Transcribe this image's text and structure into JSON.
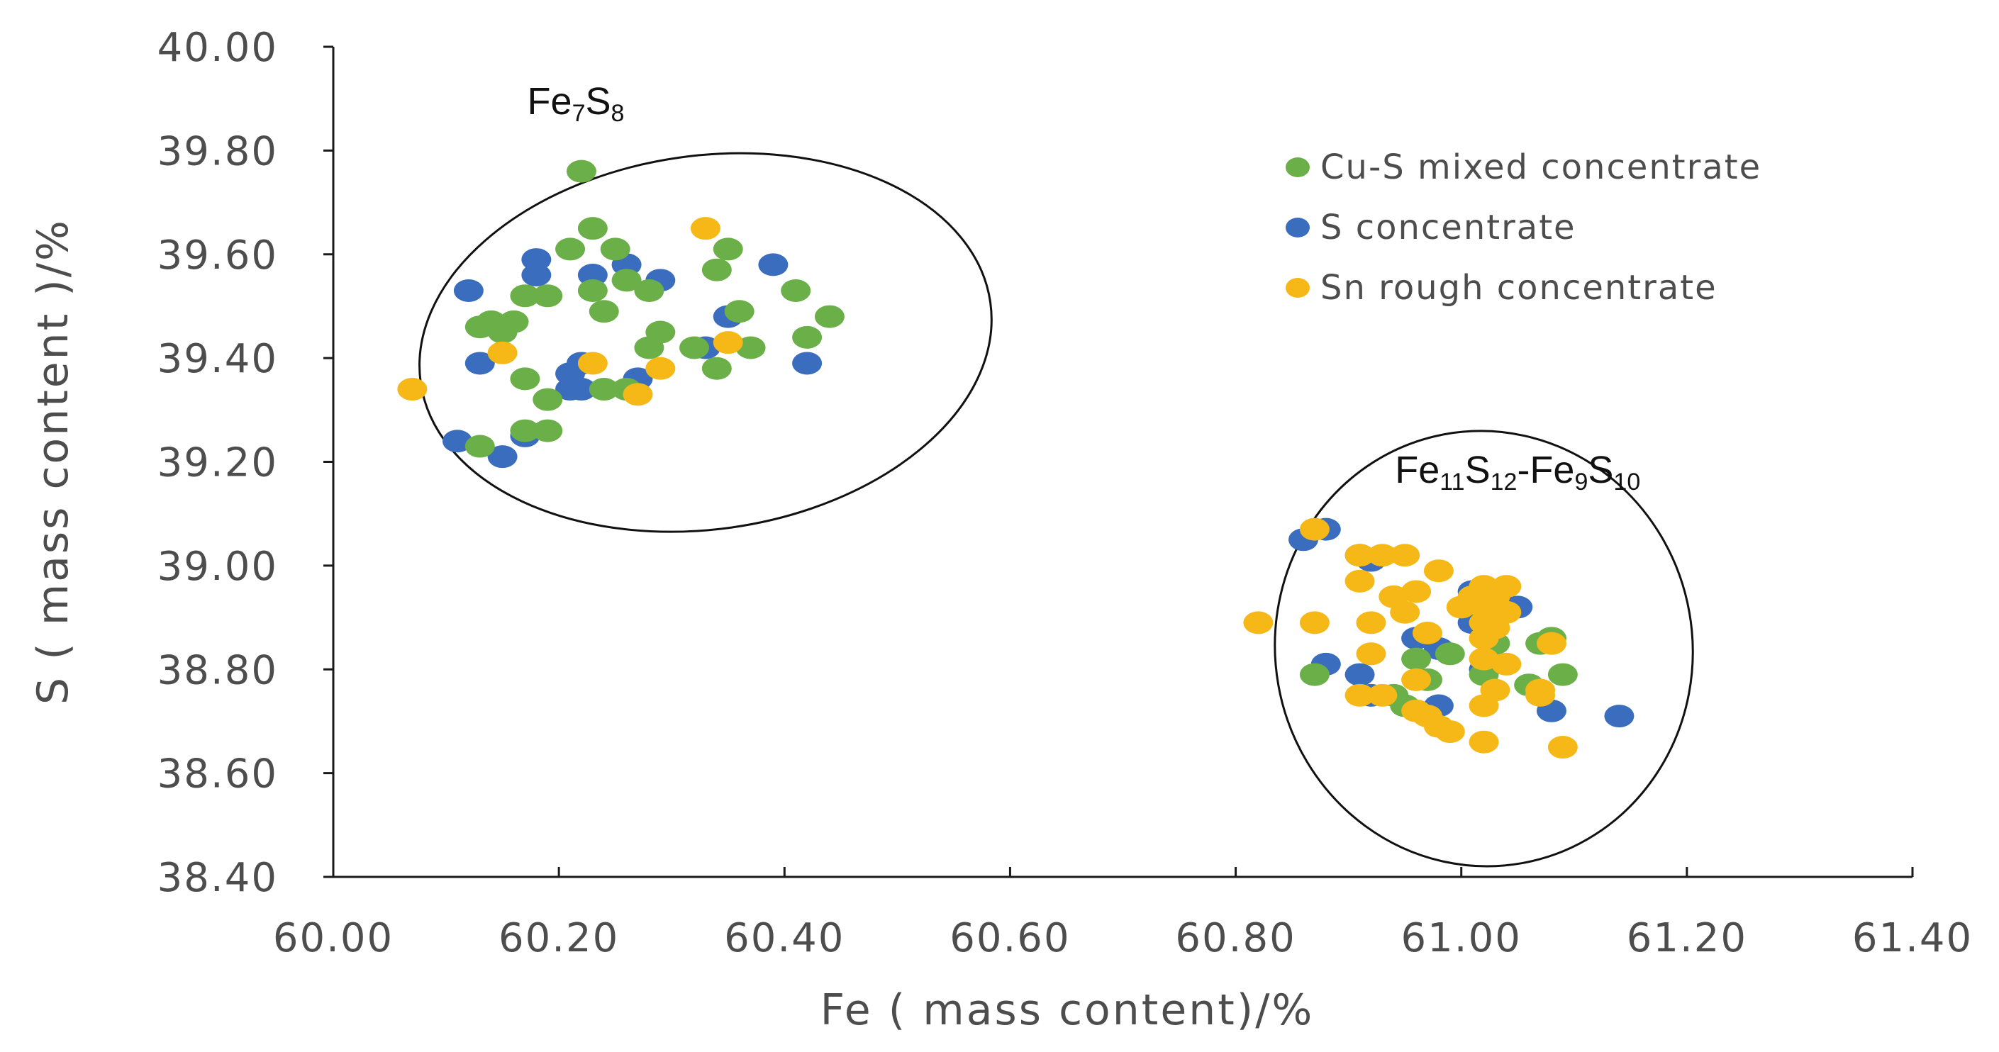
{
  "chart_data": {
    "type": "scatter",
    "xlabel": "Fe ( mass content)/%",
    "ylabel": "S ( mass content )/%",
    "xlim": [
      60.0,
      61.4
    ],
    "ylim": [
      38.4,
      40.0
    ],
    "xticks": [
      "60.00",
      "60.20",
      "60.40",
      "60.60",
      "60.80",
      "61.00",
      "61.20",
      "61.40"
    ],
    "yticks": [
      "38.40",
      "38.60",
      "38.80",
      "39.00",
      "39.20",
      "39.40",
      "39.60",
      "39.80",
      "40.00"
    ],
    "legend_position": "top-right",
    "annotations": [
      {
        "parts": [
          {
            "t": "Fe"
          },
          {
            "t": "7",
            "sub": true
          },
          {
            "t": "S"
          },
          {
            "t": "8",
            "sub": true
          }
        ],
        "x": 60.215,
        "y": 39.87
      },
      {
        "parts": [
          {
            "t": "Fe"
          },
          {
            "t": "11",
            "sub": true
          },
          {
            "t": "S"
          },
          {
            "t": "12",
            "sub": true
          },
          {
            "t": "-Fe"
          },
          {
            "t": "9",
            "sub": true
          },
          {
            "t": "S"
          },
          {
            "t": "10",
            "sub": true
          }
        ],
        "x": 61.05,
        "y": 39.16
      }
    ],
    "groups": [
      {
        "name": "Fe7S8",
        "cx": 60.33,
        "cy": 39.43,
        "rx": 0.255,
        "ry": 0.36,
        "angle": -8
      },
      {
        "name": "Fe11S12-Fe9S10",
        "cx": 61.02,
        "cy": 38.84,
        "rx": 0.185,
        "ry": 0.42,
        "angle": -10
      }
    ],
    "series": [
      {
        "name": "Cu-S mixed concentrate",
        "color": "#6aaf48",
        "points": [
          [
            60.22,
            39.76
          ],
          [
            60.23,
            39.65
          ],
          [
            60.21,
            39.61
          ],
          [
            60.25,
            39.61
          ],
          [
            60.35,
            39.61
          ],
          [
            60.34,
            39.57
          ],
          [
            60.26,
            39.55
          ],
          [
            60.23,
            39.53
          ],
          [
            60.28,
            39.53
          ],
          [
            60.41,
            39.53
          ],
          [
            60.17,
            39.52
          ],
          [
            60.19,
            39.52
          ],
          [
            60.24,
            39.49
          ],
          [
            60.36,
            39.49
          ],
          [
            60.44,
            39.48
          ],
          [
            60.14,
            39.47
          ],
          [
            60.16,
            39.47
          ],
          [
            60.13,
            39.46
          ],
          [
            60.15,
            39.45
          ],
          [
            60.29,
            39.45
          ],
          [
            60.42,
            39.44
          ],
          [
            60.28,
            39.42
          ],
          [
            60.32,
            39.42
          ],
          [
            60.37,
            39.42
          ],
          [
            60.34,
            39.38
          ],
          [
            60.17,
            39.36
          ],
          [
            60.24,
            39.34
          ],
          [
            60.26,
            39.34
          ],
          [
            60.19,
            39.32
          ],
          [
            60.17,
            39.26
          ],
          [
            60.19,
            39.26
          ],
          [
            60.13,
            39.23
          ],
          [
            60.87,
            38.79
          ],
          [
            60.97,
            38.78
          ],
          [
            60.99,
            38.83
          ],
          [
            61.03,
            38.85
          ],
          [
            61.07,
            38.85
          ],
          [
            61.08,
            38.86
          ],
          [
            61.09,
            38.79
          ],
          [
            61.06,
            38.77
          ],
          [
            60.95,
            38.73
          ],
          [
            60.96,
            38.82
          ],
          [
            61.02,
            38.79
          ],
          [
            60.94,
            38.75
          ]
        ]
      },
      {
        "name": "S concentrate",
        "color": "#3a6dbd",
        "points": [
          [
            60.18,
            39.59
          ],
          [
            60.39,
            39.58
          ],
          [
            60.26,
            39.58
          ],
          [
            60.18,
            39.56
          ],
          [
            60.23,
            39.56
          ],
          [
            60.29,
            39.55
          ],
          [
            60.12,
            39.53
          ],
          [
            60.35,
            39.48
          ],
          [
            60.33,
            39.42
          ],
          [
            60.13,
            39.39
          ],
          [
            60.42,
            39.39
          ],
          [
            60.22,
            39.39
          ],
          [
            60.21,
            39.37
          ],
          [
            60.27,
            39.36
          ],
          [
            60.21,
            39.34
          ],
          [
            60.22,
            39.34
          ],
          [
            60.17,
            39.25
          ],
          [
            60.11,
            39.24
          ],
          [
            60.15,
            39.21
          ],
          [
            60.88,
            39.07
          ],
          [
            60.86,
            39.05
          ],
          [
            60.91,
            39.02
          ],
          [
            60.92,
            39.01
          ],
          [
            61.01,
            38.95
          ],
          [
            61.05,
            38.92
          ],
          [
            61.01,
            38.89
          ],
          [
            60.96,
            38.86
          ],
          [
            60.98,
            38.84
          ],
          [
            60.88,
            38.81
          ],
          [
            61.02,
            38.8
          ],
          [
            60.91,
            38.79
          ],
          [
            60.92,
            38.75
          ],
          [
            60.98,
            38.73
          ],
          [
            61.08,
            38.72
          ],
          [
            61.14,
            38.71
          ]
        ]
      },
      {
        "name": "Sn rough concentrate",
        "color": "#f5b816",
        "points": [
          [
            60.33,
            39.65
          ],
          [
            60.35,
            39.43
          ],
          [
            60.15,
            39.41
          ],
          [
            60.23,
            39.39
          ],
          [
            60.29,
            39.38
          ],
          [
            60.07,
            39.34
          ],
          [
            60.27,
            39.33
          ],
          [
            60.87,
            39.07
          ],
          [
            60.91,
            39.02
          ],
          [
            60.93,
            39.02
          ],
          [
            60.95,
            39.02
          ],
          [
            60.98,
            38.99
          ],
          [
            60.91,
            38.97
          ],
          [
            61.02,
            38.96
          ],
          [
            61.04,
            38.96
          ],
          [
            60.96,
            38.95
          ],
          [
            61.01,
            38.94
          ],
          [
            60.94,
            38.94
          ],
          [
            61.03,
            38.94
          ],
          [
            61.02,
            38.92
          ],
          [
            61.0,
            38.92
          ],
          [
            60.95,
            38.91
          ],
          [
            61.04,
            38.91
          ],
          [
            60.82,
            38.89
          ],
          [
            60.87,
            38.89
          ],
          [
            60.92,
            38.89
          ],
          [
            61.02,
            38.89
          ],
          [
            61.03,
            38.88
          ],
          [
            60.97,
            38.87
          ],
          [
            61.02,
            38.86
          ],
          [
            61.08,
            38.85
          ],
          [
            60.92,
            38.83
          ],
          [
            61.02,
            38.82
          ],
          [
            61.04,
            38.81
          ],
          [
            60.96,
            38.78
          ],
          [
            61.03,
            38.76
          ],
          [
            61.07,
            38.76
          ],
          [
            60.91,
            38.75
          ],
          [
            60.93,
            38.75
          ],
          [
            61.07,
            38.75
          ],
          [
            61.02,
            38.73
          ],
          [
            60.96,
            38.72
          ],
          [
            60.97,
            38.71
          ],
          [
            60.98,
            38.69
          ],
          [
            60.99,
            38.68
          ],
          [
            61.02,
            38.66
          ],
          [
            61.09,
            38.65
          ]
        ]
      }
    ]
  }
}
